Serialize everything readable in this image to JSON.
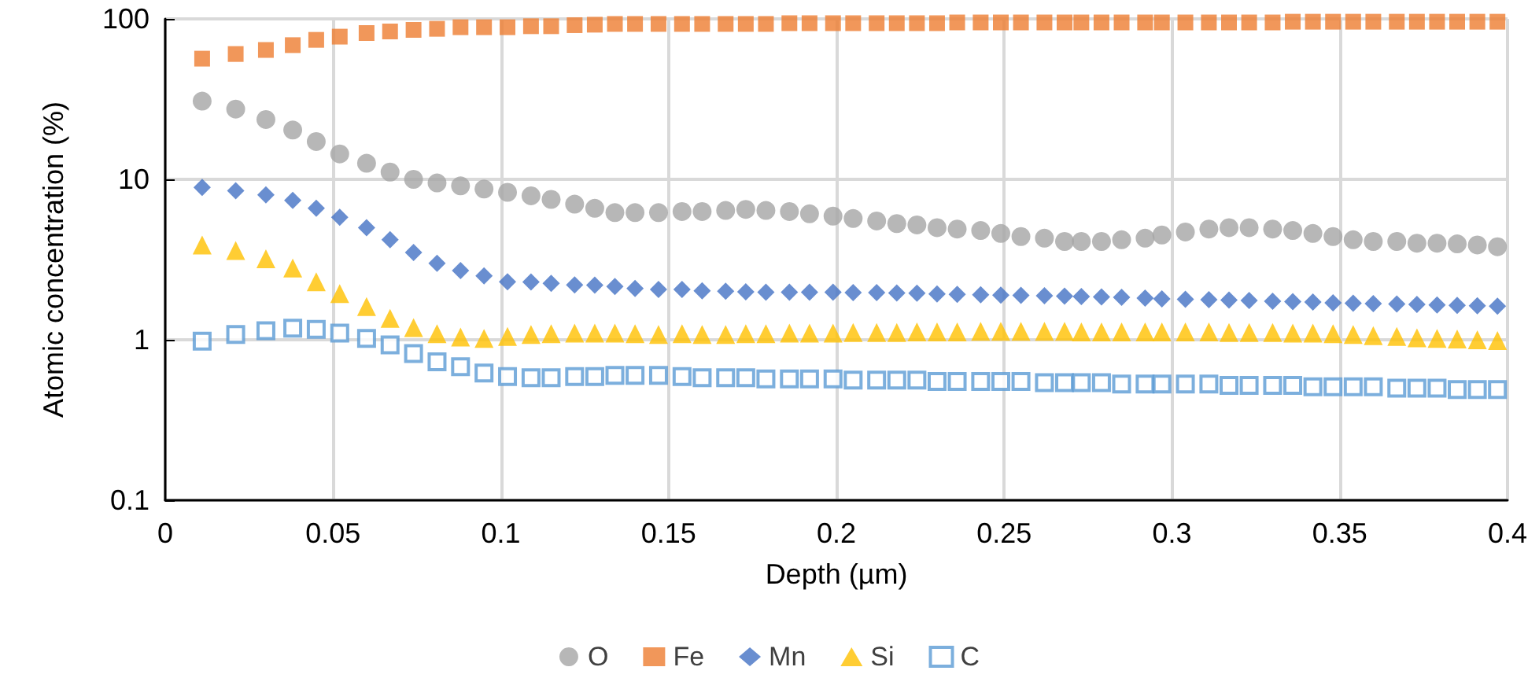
{
  "chart_data": {
    "type": "scatter",
    "xlabel": "Depth (µm)",
    "ylabel": "Atomic concentration (%)",
    "log": "y",
    "grid": true,
    "legend": "bottom",
    "xlim": [
      0,
      0.4
    ],
    "xticks": [
      0,
      0.05,
      0.1,
      0.15,
      0.2,
      0.25,
      0.3,
      0.35,
      0.4
    ],
    "ylim": [
      0.1,
      100
    ],
    "yticks": [
      0.1,
      1,
      10,
      100
    ],
    "x": [
      0.011,
      0.021,
      0.03,
      0.038,
      0.045,
      0.052,
      0.06,
      0.067,
      0.074,
      0.081,
      0.088,
      0.095,
      0.102,
      0.109,
      0.115,
      0.122,
      0.128,
      0.134,
      0.14,
      0.147,
      0.154,
      0.16,
      0.167,
      0.173,
      0.179,
      0.186,
      0.192,
      0.199,
      0.205,
      0.212,
      0.218,
      0.224,
      0.23,
      0.236,
      0.243,
      0.249,
      0.255,
      0.262,
      0.268,
      0.273,
      0.279,
      0.285,
      0.292,
      0.297,
      0.304,
      0.311,
      0.317,
      0.323,
      0.33,
      0.336,
      0.342,
      0.348,
      0.354,
      0.36,
      0.367,
      0.373,
      0.379,
      0.385,
      0.391,
      0.397
    ],
    "series": [
      {
        "name": "O",
        "color": "#a5a5a5",
        "marker": "circle",
        "values": [
          30.7,
          27.4,
          23.6,
          20.3,
          17.2,
          14.4,
          12.6,
          11.1,
          10,
          9.5,
          9.1,
          8.7,
          8.3,
          7.9,
          7.5,
          7.0,
          6.6,
          6.2,
          6.2,
          6.2,
          6.3,
          6.3,
          6.4,
          6.5,
          6.4,
          6.3,
          6.1,
          5.9,
          5.7,
          5.5,
          5.3,
          5.2,
          5.0,
          4.9,
          4.8,
          4.6,
          4.4,
          4.3,
          4.1,
          4.1,
          4.1,
          4.2,
          4.3,
          4.5,
          4.7,
          4.9,
          5.0,
          5.0,
          4.9,
          4.8,
          4.6,
          4.4,
          4.2,
          4.1,
          4.1,
          4.0,
          4.0,
          3.96,
          3.9,
          3.8
        ]
      },
      {
        "name": "Fe",
        "color": "#ed7d31",
        "marker": "square",
        "values": [
          56.5,
          60.4,
          64,
          68.6,
          74,
          77.5,
          81.6,
          83.5,
          85.4,
          86.7,
          88.7,
          88.7,
          88.7,
          90,
          90,
          91.4,
          92,
          93,
          93,
          93,
          93,
          93,
          93,
          93,
          93,
          94,
          94,
          94,
          94,
          94,
          94,
          94,
          94,
          95,
          95,
          95,
          95,
          95,
          95,
          95,
          95,
          95,
          95,
          95,
          95,
          95,
          95,
          95,
          95,
          96,
          96,
          96,
          96,
          96,
          96,
          96,
          96,
          96,
          96,
          96
        ]
      },
      {
        "name": "Mn",
        "color": "#4472c4",
        "marker": "diamond",
        "values": [
          8.9,
          8.5,
          8.0,
          7.4,
          6.6,
          5.8,
          5.0,
          4.2,
          3.5,
          3.0,
          2.7,
          2.5,
          2.3,
          2.29,
          2.25,
          2.2,
          2.19,
          2.15,
          2.09,
          2.06,
          2.06,
          2.02,
          2.01,
          1.99,
          1.98,
          1.98,
          1.98,
          1.98,
          1.97,
          1.97,
          1.96,
          1.95,
          1.93,
          1.92,
          1.91,
          1.9,
          1.89,
          1.88,
          1.87,
          1.86,
          1.85,
          1.84,
          1.82,
          1.8,
          1.79,
          1.78,
          1.77,
          1.76,
          1.74,
          1.73,
          1.72,
          1.7,
          1.69,
          1.68,
          1.67,
          1.66,
          1.65,
          1.64,
          1.63,
          1.62
        ]
      },
      {
        "name": "Si",
        "color": "#ffc000",
        "marker": "triangle",
        "values": [
          3.9,
          3.6,
          3.2,
          2.8,
          2.3,
          1.94,
          1.61,
          1.36,
          1.19,
          1.09,
          1.04,
          1.02,
          1.05,
          1.08,
          1.09,
          1.1,
          1.1,
          1.1,
          1.09,
          1.08,
          1.09,
          1.08,
          1.08,
          1.09,
          1.09,
          1.1,
          1.1,
          1.1,
          1.11,
          1.11,
          1.11,
          1.12,
          1.12,
          1.12,
          1.13,
          1.13,
          1.13,
          1.13,
          1.13,
          1.12,
          1.12,
          1.12,
          1.12,
          1.12,
          1.12,
          1.12,
          1.11,
          1.11,
          1.11,
          1.1,
          1.1,
          1.09,
          1.08,
          1.06,
          1.05,
          1.03,
          1.02,
          1.01,
          1.0,
          0.99
        ]
      },
      {
        "name": "C",
        "color": "#5b9bd5",
        "marker": "square",
        "values": [
          0.98,
          1.08,
          1.14,
          1.18,
          1.16,
          1.1,
          1.02,
          0.93,
          0.82,
          0.73,
          0.68,
          0.62,
          0.59,
          0.58,
          0.58,
          0.59,
          0.59,
          0.6,
          0.6,
          0.6,
          0.59,
          0.58,
          0.58,
          0.58,
          0.57,
          0.57,
          0.57,
          0.57,
          0.56,
          0.56,
          0.56,
          0.56,
          0.55,
          0.55,
          0.55,
          0.55,
          0.55,
          0.54,
          0.54,
          0.54,
          0.54,
          0.53,
          0.53,
          0.53,
          0.53,
          0.53,
          0.52,
          0.52,
          0.52,
          0.52,
          0.51,
          0.51,
          0.51,
          0.51,
          0.5,
          0.5,
          0.5,
          0.49,
          0.49,
          0.49
        ]
      }
    ]
  }
}
